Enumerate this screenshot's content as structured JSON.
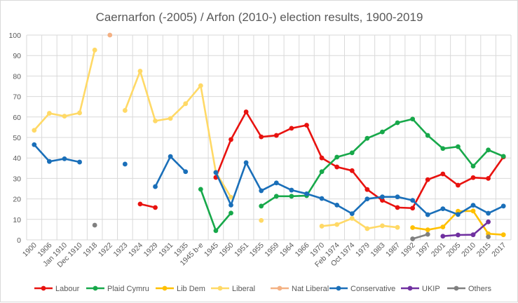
{
  "chart_data": {
    "type": "line",
    "title": "Caernarfon (-2005) / Arfon (2010-) election results, 1900-2019",
    "xlabel": "",
    "ylabel": "",
    "ylim": [
      0,
      100
    ],
    "yticks": [
      0,
      10,
      20,
      30,
      40,
      50,
      60,
      70,
      80,
      90,
      100
    ],
    "grid": true,
    "legend_position": "bottom",
    "categories": [
      "1900",
      "1906",
      "Jan 1910",
      "Dec 1910",
      "1918",
      "1922",
      "1923",
      "1924",
      "1929",
      "1931",
      "1935",
      "1945 b-e",
      "1945",
      "1950",
      "1951",
      "1955",
      "1959",
      "1964",
      "1966",
      "1970",
      "Feb 1974",
      "Oct 1974",
      "1979",
      "1983",
      "1987",
      "1992",
      "1997",
      "2001",
      "2005",
      "2010",
      "2015",
      "2017"
    ],
    "series": [
      {
        "name": "Labour",
        "color": "#e8120f",
        "values": [
          null,
          null,
          null,
          null,
          null,
          null,
          null,
          17.5,
          15.8,
          null,
          null,
          null,
          30.5,
          49,
          62.5,
          50.3,
          51,
          54.5,
          56,
          40,
          35.6,
          33.8,
          24.6,
          19.3,
          15.8,
          15.5,
          29.4,
          32.2,
          26.7,
          30.4,
          30,
          40.5
        ]
      },
      {
        "name": "Plaid Cymru",
        "color": "#17a84a",
        "values": [
          null,
          null,
          null,
          null,
          null,
          null,
          null,
          null,
          null,
          null,
          null,
          24.7,
          4.5,
          13.1,
          null,
          16.5,
          21.3,
          21.3,
          21.6,
          33.3,
          40.4,
          42.5,
          49.6,
          52.7,
          57.2,
          59,
          51,
          44.6,
          45.5,
          36,
          43.9,
          40.8
        ]
      },
      {
        "name": "Lib Dem",
        "color": "#ffc000",
        "values": [
          null,
          null,
          null,
          null,
          null,
          null,
          null,
          null,
          null,
          null,
          null,
          null,
          null,
          null,
          null,
          null,
          null,
          null,
          null,
          null,
          null,
          null,
          null,
          null,
          null,
          6,
          4.9,
          6.3,
          14,
          14.1,
          3,
          2.5
        ]
      },
      {
        "name": "Liberal",
        "color": "#ffd966",
        "values": [
          53.5,
          61.8,
          60.4,
          62,
          92.7,
          null,
          63.2,
          82.4,
          58.1,
          59.3,
          66.5,
          75.3,
          33,
          20.8,
          null,
          9.5,
          null,
          null,
          null,
          6.7,
          7.5,
          10.5,
          5.5,
          6.9,
          6.1,
          null,
          null,
          null,
          null,
          null,
          null,
          null
        ]
      },
      {
        "name": "Nat Liberal",
        "color": "#f4b183",
        "values": [
          null,
          null,
          null,
          null,
          null,
          100,
          null,
          null,
          null,
          null,
          null,
          null,
          null,
          null,
          null,
          null,
          null,
          null,
          null,
          null,
          null,
          null,
          null,
          null,
          null,
          null,
          null,
          null,
          null,
          null,
          null,
          null
        ]
      },
      {
        "name": "Conservative",
        "color": "#1a6fb9",
        "values": [
          46.5,
          38.3,
          39.6,
          38,
          null,
          null,
          37,
          null,
          26,
          40.7,
          33.3,
          null,
          32.9,
          17,
          37.7,
          24,
          27.8,
          24.3,
          22.5,
          20.2,
          17,
          12.8,
          20,
          21,
          21,
          19.3,
          12.3,
          15.2,
          12.4,
          16.9,
          13,
          16.5
        ]
      },
      {
        "name": "UKIP",
        "color": "#7030a0",
        "values": [
          null,
          null,
          null,
          null,
          null,
          null,
          null,
          null,
          null,
          null,
          null,
          null,
          null,
          null,
          null,
          null,
          null,
          null,
          null,
          null,
          null,
          null,
          null,
          null,
          null,
          null,
          null,
          1.8,
          2.4,
          2.5,
          8.8,
          null
        ]
      },
      {
        "name": "Others",
        "color": "#808080",
        "values": [
          null,
          null,
          null,
          null,
          7.2,
          null,
          null,
          null,
          null,
          null,
          null,
          null,
          null,
          null,
          null,
          null,
          null,
          null,
          null,
          null,
          null,
          null,
          null,
          null,
          null,
          0.5,
          2.7,
          null,
          null,
          null,
          1.5,
          null
        ]
      }
    ]
  }
}
